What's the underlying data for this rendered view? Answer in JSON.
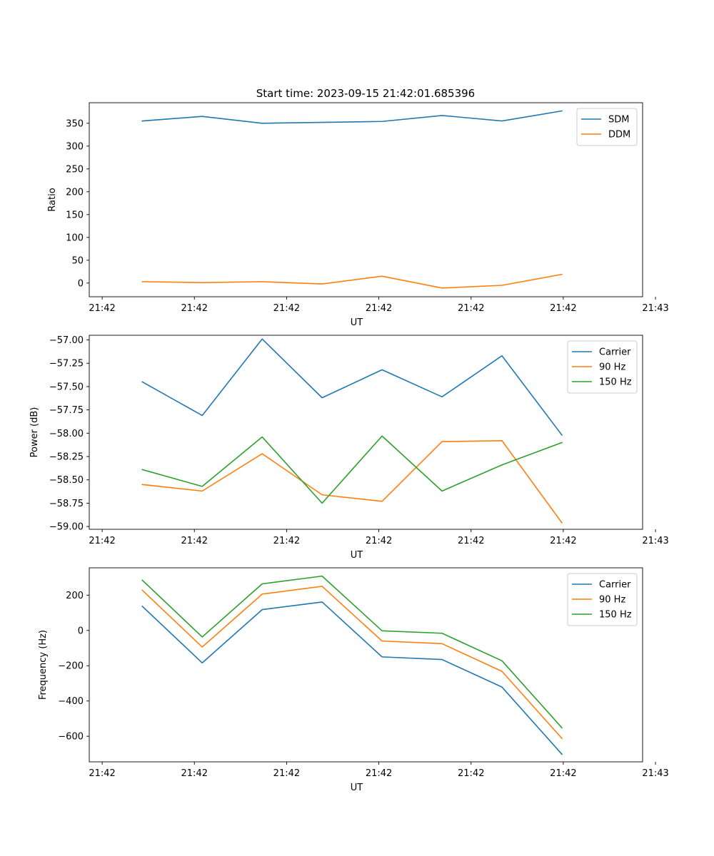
{
  "figure_title": "Start time: 2023-09-15 21:42:01.685396",
  "colors": {
    "blue": "#1f77b4",
    "orange": "#ff7f0e",
    "green": "#2ca02c"
  },
  "chart_data": [
    {
      "type": "line",
      "title": "Start time: 2023-09-15 21:42:01.685396",
      "xlabel": "UT",
      "ylabel": "Ratio",
      "xlim": [
        -1.15,
        10.85
      ],
      "ylim": [
        -30,
        395
      ],
      "x_tick_values": [
        -0.87,
        1.13,
        3.13,
        5.13,
        7.13,
        9.13,
        11.13
      ],
      "x_tick_labels": [
        "21:42",
        "21:42",
        "21:42",
        "21:42",
        "21:42",
        "21:42",
        "21:43"
      ],
      "y_ticks": [
        0,
        50,
        100,
        150,
        200,
        250,
        300,
        350
      ],
      "y_tick_labels": [
        "0",
        "50",
        "100",
        "150",
        "200",
        "250",
        "300",
        "350"
      ],
      "x": [
        0,
        1.3,
        2.6,
        3.9,
        5.2,
        6.5,
        7.8,
        9.1
      ],
      "legend_position": "top-right",
      "series": [
        {
          "name": "SDM",
          "color": "#1f77b4",
          "values": [
            355,
            365,
            350,
            352,
            354,
            367,
            355,
            377
          ]
        },
        {
          "name": "DDM",
          "color": "#ff7f0e",
          "values": [
            3,
            1,
            3,
            -2,
            15,
            -11,
            -5,
            19
          ]
        }
      ]
    },
    {
      "type": "line",
      "title": "",
      "xlabel": "UT",
      "ylabel": "Power (dB)",
      "xlim": [
        -1.15,
        10.85
      ],
      "ylim": [
        -59.03,
        -56.95
      ],
      "x_tick_values": [
        -0.87,
        1.13,
        3.13,
        5.13,
        7.13,
        9.13,
        11.13
      ],
      "x_tick_labels": [
        "21:42",
        "21:42",
        "21:42",
        "21:42",
        "21:42",
        "21:42",
        "21:43"
      ],
      "y_ticks": [
        -59.0,
        -58.75,
        -58.5,
        -58.25,
        -58.0,
        -57.75,
        -57.5,
        -57.25,
        -57.0
      ],
      "y_tick_labels": [
        "−59.00",
        "−58.75",
        "−58.50",
        "−58.25",
        "−58.00",
        "−57.75",
        "−57.50",
        "−57.25",
        "−57.00"
      ],
      "x": [
        0,
        1.3,
        2.6,
        3.9,
        5.2,
        6.5,
        7.8,
        9.1
      ],
      "legend_position": "top-right",
      "series": [
        {
          "name": "Carrier",
          "color": "#1f77b4",
          "values": [
            -57.45,
            -57.81,
            -56.99,
            -57.62,
            -57.32,
            -57.61,
            -57.17,
            -58.02
          ]
        },
        {
          "name": "90 Hz",
          "color": "#ff7f0e",
          "values": [
            -58.55,
            -58.62,
            -58.22,
            -58.66,
            -58.73,
            -58.09,
            -58.08,
            -58.96
          ]
        },
        {
          "name": "150 Hz",
          "color": "#2ca02c",
          "values": [
            -58.39,
            -58.57,
            -58.04,
            -58.75,
            -58.03,
            -58.62,
            -58.34,
            -58.1
          ]
        }
      ]
    },
    {
      "type": "line",
      "title": "",
      "xlabel": "UT",
      "ylabel": "Frequency (Hz)",
      "xlim": [
        -1.15,
        10.85
      ],
      "ylim": [
        -745,
        355
      ],
      "x_tick_values": [
        -0.87,
        1.13,
        3.13,
        5.13,
        7.13,
        9.13,
        11.13
      ],
      "x_tick_labels": [
        "21:42",
        "21:42",
        "21:42",
        "21:42",
        "21:42",
        "21:42",
        "21:43"
      ],
      "y_ticks": [
        -600,
        -400,
        -200,
        0,
        200
      ],
      "y_tick_labels": [
        "−600",
        "−400",
        "−200",
        "0",
        "200"
      ],
      "x": [
        0,
        1.3,
        2.6,
        3.9,
        5.2,
        6.5,
        7.8,
        9.1
      ],
      "legend_position": "top-right",
      "series": [
        {
          "name": "Carrier",
          "color": "#1f77b4",
          "values": [
            137,
            -184,
            118,
            161,
            -150,
            -165,
            -321,
            -702
          ]
        },
        {
          "name": "90 Hz",
          "color": "#ff7f0e",
          "values": [
            228,
            -94,
            206,
            250,
            -60,
            -75,
            -232,
            -612
          ]
        },
        {
          "name": "150 Hz",
          "color": "#2ca02c",
          "values": [
            285,
            -37,
            264,
            308,
            -2,
            -16,
            -172,
            -552
          ]
        }
      ]
    }
  ]
}
